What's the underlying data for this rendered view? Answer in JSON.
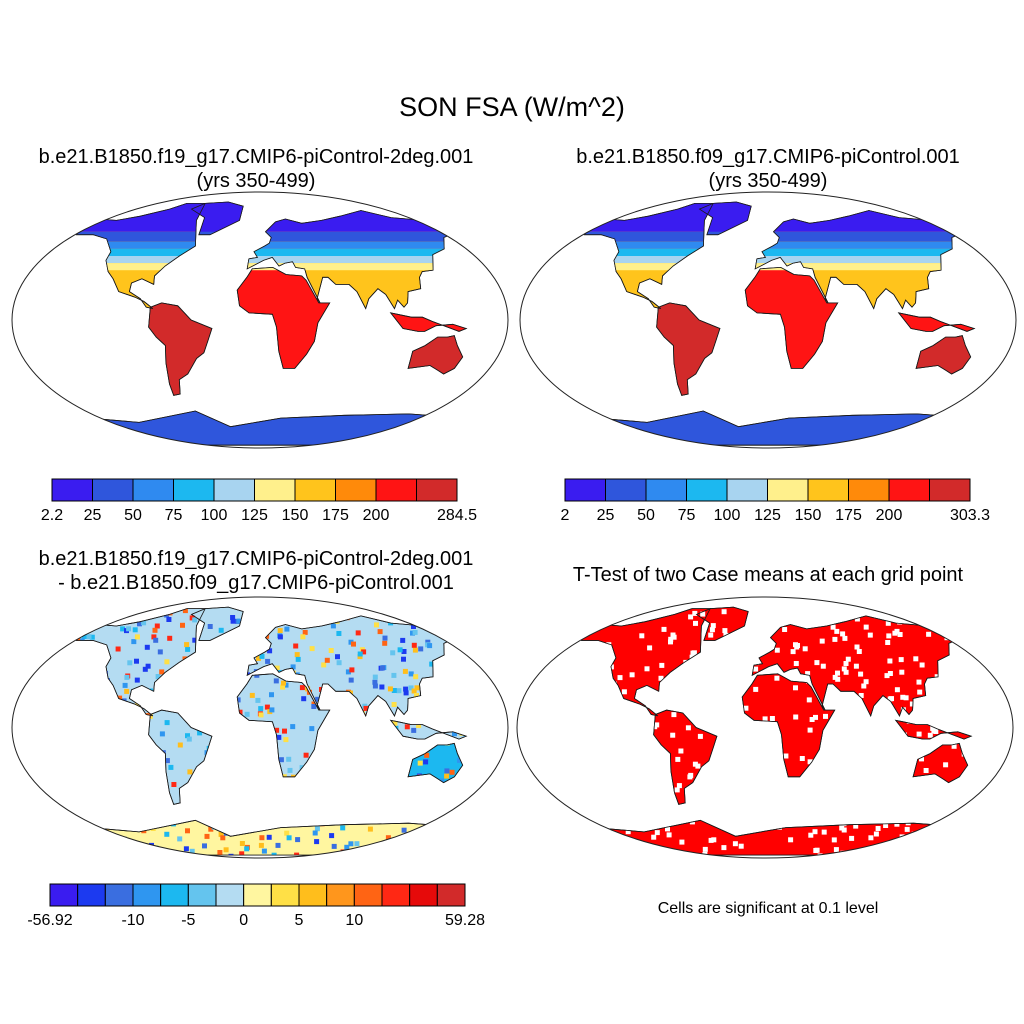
{
  "main_title": "SON FSA (W/m^2)",
  "panels": {
    "p1": {
      "title_line1": "b.e21.B1850.f19_g17.CMIP6-piControl-2deg.001",
      "title_line2": "(yrs 350-499)"
    },
    "p2": {
      "title_line1": "b.e21.B1850.f09_g17.CMIP6-piControl.001",
      "title_line2": "(yrs 350-499)"
    },
    "p3": {
      "title_line1": "b.e21.B1850.f19_g17.CMIP6-piControl-2deg.001",
      "title_line2": "- b.e21.B1850.f09_g17.CMIP6-piControl.001"
    },
    "p4": {
      "title_line1": "T-Test of two Case means at each grid point",
      "note": "Cells are significant at 0.1 level"
    }
  },
  "colorbars": {
    "cb1": {
      "colors": [
        "#3a1cf0",
        "#2f56dc",
        "#2f8af0",
        "#1cb8f0",
        "#a8d4f0",
        "#fff08c",
        "#ffc41c",
        "#ff8a0a",
        "#ff1414",
        "#d22a2a"
      ],
      "ticks": [
        "2.2",
        "25",
        "50",
        "75",
        "100",
        "125",
        "150",
        "175",
        "200",
        "284.5"
      ]
    },
    "cb2": {
      "colors": [
        "#3a1cf0",
        "#2f56dc",
        "#2f8af0",
        "#1cb8f0",
        "#a8d4f0",
        "#fff08c",
        "#ffc41c",
        "#ff8a0a",
        "#ff1414",
        "#d22a2a"
      ],
      "ticks": [
        "2",
        "25",
        "50",
        "75",
        "100",
        "125",
        "150",
        "175",
        "200",
        "303.3"
      ]
    },
    "cb3": {
      "colors": [
        "#3a1cf0",
        "#1c3af0",
        "#3a6ee0",
        "#2f96f0",
        "#1cb8f0",
        "#64c4ee",
        "#b4dcf2",
        "#fff6a0",
        "#ffe046",
        "#ffbe1c",
        "#ff961c",
        "#ff6414",
        "#ff2814",
        "#e60a0a",
        "#d22a2a"
      ],
      "ticks": [
        "-56.92",
        "-10",
        "-5",
        "0",
        "5",
        "10",
        "59.28"
      ]
    }
  },
  "colors": {
    "land_warm": "#ff9a1c",
    "ocean": "#ffffff",
    "significant": "#ff0000"
  }
}
